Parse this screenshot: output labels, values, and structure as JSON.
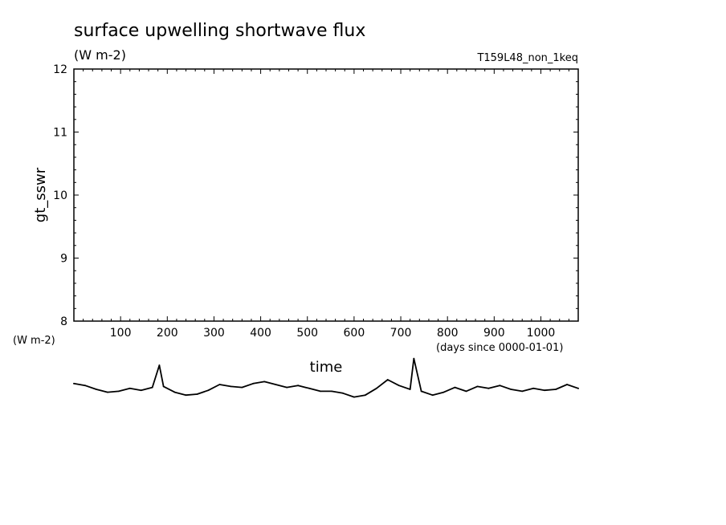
{
  "chart_data": {
    "type": "line",
    "title": "surface upwelling shortwave flux",
    "units": "(W m-2)",
    "experiment": "T159L48_non_1keq",
    "xlabel": "time",
    "x_units": "(days since 0000-01-01)",
    "ylabel": "gt_sswr",
    "lower_units": "(W m-2)",
    "xlim": [
      0,
      1080
    ],
    "ylim": [
      8,
      12
    ],
    "x_ticks": [
      "100",
      "200",
      "300",
      "400",
      "500",
      "600",
      "700",
      "800",
      "900",
      "1000"
    ],
    "y_ticks": [
      "8",
      "9",
      "10",
      "11",
      "12"
    ],
    "grid": false,
    "series": [
      {
        "x": [
          0,
          24,
          48,
          72,
          96,
          120,
          144,
          168,
          183,
          192,
          216,
          240,
          264,
          288,
          312,
          336,
          360,
          384,
          408,
          432,
          456,
          480,
          504,
          528,
          552,
          576,
          600,
          624,
          648,
          672,
          696,
          720,
          728,
          744,
          768,
          792,
          816,
          840,
          864,
          888,
          912,
          936,
          960,
          984,
          1008,
          1032,
          1056,
          1080
        ],
        "values": [
          0.6,
          0.4,
          0.0,
          -0.3,
          -0.2,
          0.1,
          -0.1,
          0.2,
          2.5,
          0.3,
          -0.3,
          -0.6,
          -0.5,
          -0.1,
          0.5,
          0.3,
          0.2,
          0.6,
          0.8,
          0.5,
          0.2,
          0.4,
          0.1,
          -0.2,
          -0.2,
          -0.4,
          -0.8,
          -0.6,
          0.1,
          1.0,
          0.4,
          0.0,
          3.2,
          -0.2,
          -0.6,
          -0.3,
          0.2,
          -0.2,
          0.3,
          0.1,
          0.4,
          0.0,
          -0.2,
          0.1,
          -0.1,
          0.0,
          0.5,
          0.1
        ]
      }
    ]
  }
}
